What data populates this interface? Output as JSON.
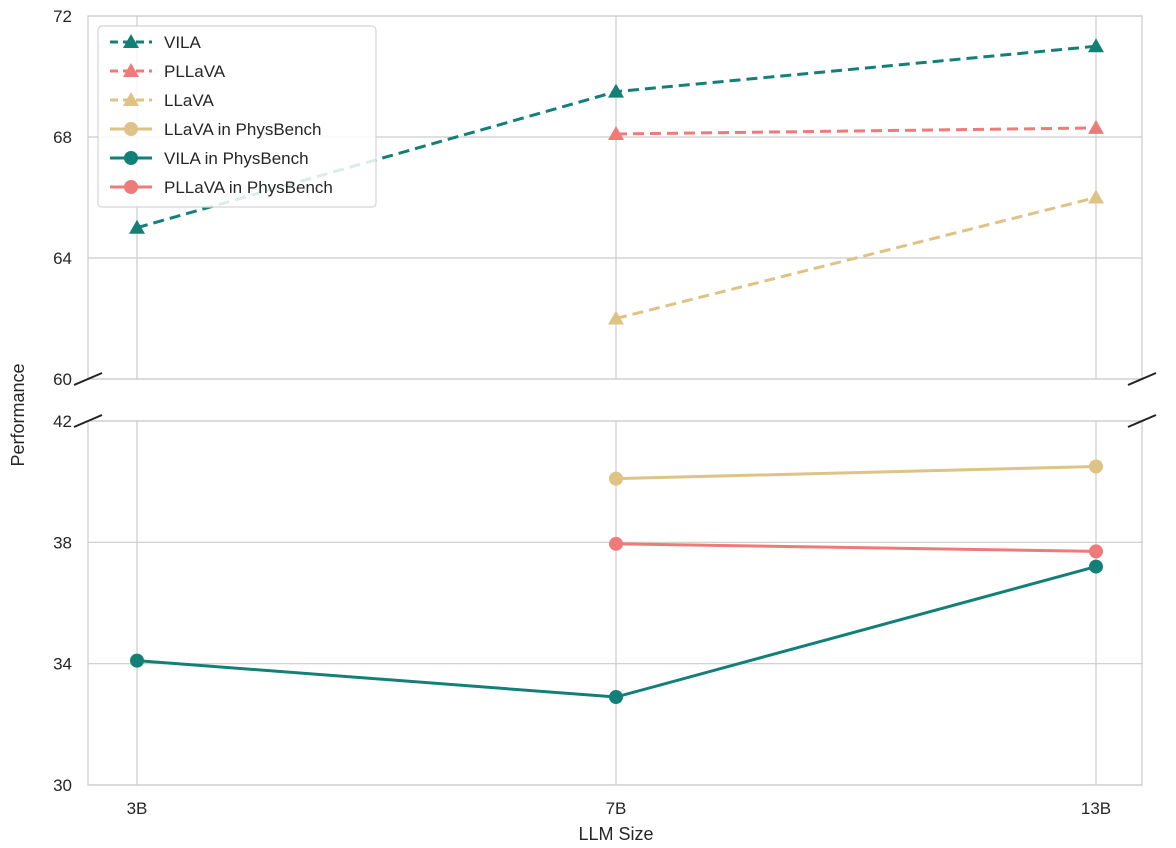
{
  "chart_data": {
    "type": "line",
    "xlabel": "LLM Size",
    "ylabel": "Performance",
    "categories": [
      "3B",
      "7B",
      "13B"
    ],
    "broken_y_axis": true,
    "panels": [
      {
        "name": "upper",
        "ylim": [
          60,
          72
        ],
        "yticks": [
          "60",
          "64",
          "68",
          "72"
        ]
      },
      {
        "name": "lower",
        "ylim": [
          30,
          42
        ],
        "yticks": [
          "30",
          "34",
          "38",
          "42"
        ]
      }
    ],
    "grid": true,
    "legend_position": "top-left",
    "series": [
      {
        "name": "VILA",
        "panel": "upper",
        "style": "dashed",
        "marker": "triangle",
        "color": "#138078",
        "values": [
          65.0,
          69.5,
          71.0
        ]
      },
      {
        "name": "PLLaVA",
        "panel": "upper",
        "style": "dashed",
        "marker": "triangle",
        "color": "#EE7B79",
        "values": [
          null,
          68.1,
          68.3
        ]
      },
      {
        "name": "LLaVA",
        "panel": "upper",
        "style": "dashed",
        "marker": "triangle",
        "color": "#DFC286",
        "values": [
          null,
          62.0,
          66.0
        ]
      },
      {
        "name": "LLaVA in PhysBench",
        "panel": "lower",
        "style": "solid",
        "marker": "circle",
        "color": "#DFC286",
        "values": [
          null,
          40.1,
          40.5
        ]
      },
      {
        "name": "VILA in PhysBench",
        "panel": "lower",
        "style": "solid",
        "marker": "circle",
        "color": "#138078",
        "values": [
          34.1,
          32.9,
          37.2
        ]
      },
      {
        "name": "PLLaVA in PhysBench",
        "panel": "lower",
        "style": "solid",
        "marker": "circle",
        "color": "#EE7B79",
        "values": [
          null,
          37.95,
          37.7
        ]
      }
    ]
  }
}
